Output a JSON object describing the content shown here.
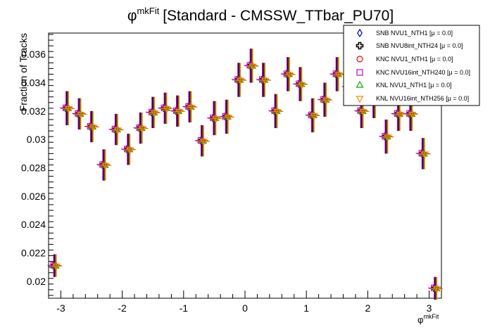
{
  "chart_data": {
    "type": "scatter",
    "title": "[Standard - CMSSW_TTbar_PU70]",
    "title_symbol": "φ",
    "title_sup": "mkFit",
    "xlabel": "φ",
    "xlabel_sup": "mkFit",
    "ylabel": "Fraction of Tracks",
    "xlim": [
      -3.2,
      3.2
    ],
    "ylim": [
      0.0188,
      0.0375
    ],
    "x_ticks": [
      -3,
      -2,
      -1,
      0,
      1,
      2,
      3
    ],
    "x_tick_labels": [
      "-3",
      "-2",
      "-1",
      "0",
      "1",
      "2",
      "3"
    ],
    "y_ticks": [
      0.02,
      0.022,
      0.024,
      0.026,
      0.028,
      0.03,
      0.032,
      0.034,
      0.036
    ],
    "y_tick_labels": [
      "0.02",
      "0.022",
      "0.024",
      "0.026",
      "0.028",
      "0.03",
      "0.032",
      "0.034",
      "0.036"
    ],
    "grid": false,
    "legend_position": "top-right",
    "bin_width": 0.2,
    "x": [
      -3.1,
      -2.9,
      -2.7,
      -2.5,
      -2.3,
      -2.1,
      -1.9,
      -1.7,
      -1.5,
      -1.3,
      -1.1,
      -0.9,
      -0.7,
      -0.5,
      -0.3,
      -0.1,
      0.1,
      0.3,
      0.5,
      0.7,
      0.9,
      1.1,
      1.3,
      1.5,
      1.7,
      1.9,
      2.1,
      2.3,
      2.5,
      2.7,
      2.9,
      3.1
    ],
    "values": [
      0.0211,
      0.0322,
      0.0318,
      0.0309,
      0.0282,
      0.0307,
      0.0293,
      0.0308,
      0.0319,
      0.0322,
      0.032,
      0.0323,
      0.0299,
      0.0315,
      0.0316,
      0.0342,
      0.0352,
      0.0342,
      0.032,
      0.0346,
      0.0339,
      0.0317,
      0.0328,
      0.0346,
      0.0337,
      0.032,
      0.0327,
      0.0302,
      0.0318,
      0.0318,
      0.029,
      0.0195
    ],
    "errors": [
      0.0008,
      0.0012,
      0.0011,
      0.0011,
      0.0011,
      0.0011,
      0.0011,
      0.0011,
      0.0011,
      0.0011,
      0.0011,
      0.0011,
      0.0011,
      0.0012,
      0.0012,
      0.0012,
      0.0012,
      0.0012,
      0.0012,
      0.0012,
      0.0012,
      0.0012,
      0.0012,
      0.0012,
      0.0012,
      0.0012,
      0.0012,
      0.0012,
      0.0012,
      0.0012,
      0.0011,
      0.0008
    ],
    "series": [
      {
        "name": "SNB NVU1_NTH1 [μ = 0.0]",
        "color": "#0000cc",
        "marker": "diamond-open"
      },
      {
        "name": "SNB NVU8int_NTH24 [μ = 0.0]",
        "color": "#000000",
        "marker": "cross-open"
      },
      {
        "name": "KNC NVU1_NTH1 [μ = 0.0]",
        "color": "#ff0000",
        "marker": "circle-open"
      },
      {
        "name": "KNC NVU16int_NTH240 [μ = 0.0]",
        "color": "#cc00cc",
        "marker": "square-open"
      },
      {
        "name": "KNL NVU1_NTH1 [μ = 0.0]",
        "color": "#00aa00",
        "marker": "triangle-open"
      },
      {
        "name": "KNL NVU16int_NTH256 [μ = 0.0]",
        "color": "#ff8800",
        "marker": "triangle-down-open"
      }
    ]
  }
}
